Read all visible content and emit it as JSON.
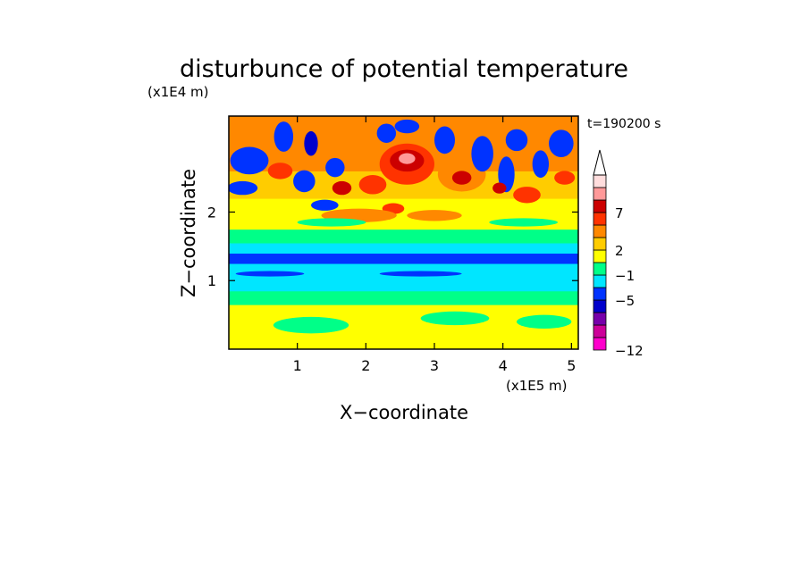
{
  "chart_data": {
    "type": "heatmap",
    "title": "disturbunce of potential temperature",
    "time_label": "t=190200 s",
    "xlabel": "X−coordinate",
    "ylabel": "Z−coordinate",
    "x_unit": "(x1E5 m)",
    "y_unit": "(x1E4 m)",
    "xlim": [
      0,
      5.1
    ],
    "ylim": [
      0,
      3.4
    ],
    "x_ticks": [
      {
        "value": 1,
        "label": "1"
      },
      {
        "value": 2,
        "label": "2"
      },
      {
        "value": 3,
        "label": "3"
      },
      {
        "value": 4,
        "label": "4"
      },
      {
        "value": 5,
        "label": "5"
      }
    ],
    "y_ticks": [
      {
        "value": 1,
        "label": "1"
      },
      {
        "value": 2,
        "label": "2"
      }
    ],
    "grid": false,
    "colorbar": {
      "position": "right",
      "levels": [
        {
          "color": "#ff00cc"
        },
        {
          "color": "#cc0099"
        },
        {
          "color": "#7700aa"
        },
        {
          "color": "#0000cc"
        },
        {
          "color": "#0033ff"
        },
        {
          "color": "#00e6ff"
        },
        {
          "color": "#00ff88"
        },
        {
          "color": "#ffff00"
        },
        {
          "color": "#ffcc00"
        },
        {
          "color": "#ff8800"
        },
        {
          "color": "#ff3300"
        },
        {
          "color": "#cc0000"
        },
        {
          "color": "#ff9999"
        },
        {
          "color": "#ffdddd"
        }
      ],
      "tick_labels": [
        {
          "index": 0,
          "label": "−12"
        },
        {
          "index": 4,
          "label": "−5"
        },
        {
          "index": 6,
          "label": "−1"
        },
        {
          "index": 8,
          "label": "2"
        },
        {
          "index": 11,
          "label": "7"
        }
      ]
    },
    "bands": [
      {
        "z": [
          0.0,
          0.2
        ],
        "level": 7
      },
      {
        "z": [
          0.2,
          0.65
        ],
        "level": 7
      },
      {
        "z": [
          0.65,
          0.85
        ],
        "level": 6
      },
      {
        "z": [
          0.85,
          1.05
        ],
        "level": 5
      },
      {
        "z": [
          1.05,
          1.25
        ],
        "level": 5
      },
      {
        "z": [
          1.25,
          1.4
        ],
        "level": 4
      },
      {
        "z": [
          1.4,
          1.55
        ],
        "level": 5
      },
      {
        "z": [
          1.55,
          1.75
        ],
        "level": 6
      },
      {
        "z": [
          1.75,
          2.2
        ],
        "level": 7
      },
      {
        "z": [
          2.2,
          2.6
        ],
        "level": 8
      },
      {
        "z": [
          2.6,
          3.4
        ],
        "level": 9
      }
    ],
    "features": [
      {
        "x": 1.2,
        "z": 0.35,
        "rx": 0.55,
        "rz": 0.12,
        "level": 6
      },
      {
        "x": 3.3,
        "z": 0.45,
        "rx": 0.5,
        "rz": 0.1,
        "level": 6
      },
      {
        "x": 4.6,
        "z": 0.4,
        "rx": 0.4,
        "rz": 0.1,
        "level": 6
      },
      {
        "x": 0.3,
        "z": 2.75,
        "rx": 0.28,
        "rz": 0.2,
        "level": 4
      },
      {
        "x": 0.2,
        "z": 2.35,
        "rx": 0.22,
        "rz": 0.1,
        "level": 4
      },
      {
        "x": 0.8,
        "z": 3.1,
        "rx": 0.14,
        "rz": 0.22,
        "level": 4
      },
      {
        "x": 1.2,
        "z": 3.0,
        "rx": 0.1,
        "rz": 0.18,
        "level": 3
      },
      {
        "x": 1.1,
        "z": 2.45,
        "rx": 0.16,
        "rz": 0.16,
        "level": 4
      },
      {
        "x": 1.55,
        "z": 2.65,
        "rx": 0.14,
        "rz": 0.14,
        "level": 4
      },
      {
        "x": 0.75,
        "z": 2.6,
        "rx": 0.18,
        "rz": 0.12,
        "level": 10
      },
      {
        "x": 1.65,
        "z": 2.35,
        "rx": 0.14,
        "rz": 0.1,
        "level": 11
      },
      {
        "x": 2.1,
        "z": 2.4,
        "rx": 0.2,
        "rz": 0.14,
        "level": 10
      },
      {
        "x": 1.4,
        "z": 2.1,
        "rx": 0.2,
        "rz": 0.08,
        "level": 4
      },
      {
        "x": 2.4,
        "z": 2.05,
        "rx": 0.16,
        "rz": 0.08,
        "level": 10
      },
      {
        "x": 2.6,
        "z": 2.7,
        "rx": 0.4,
        "rz": 0.3,
        "level": 10
      },
      {
        "x": 2.6,
        "z": 2.75,
        "rx": 0.25,
        "rz": 0.16,
        "level": 11
      },
      {
        "x": 2.6,
        "z": 2.78,
        "rx": 0.12,
        "rz": 0.08,
        "level": 12
      },
      {
        "x": 2.3,
        "z": 3.15,
        "rx": 0.14,
        "rz": 0.14,
        "level": 4
      },
      {
        "x": 2.6,
        "z": 3.25,
        "rx": 0.18,
        "rz": 0.1,
        "level": 4
      },
      {
        "x": 3.15,
        "z": 3.05,
        "rx": 0.15,
        "rz": 0.2,
        "level": 4
      },
      {
        "x": 3.4,
        "z": 2.55,
        "rx": 0.35,
        "rz": 0.25,
        "level": 9
      },
      {
        "x": 3.4,
        "z": 2.5,
        "rx": 0.14,
        "rz": 0.1,
        "level": 11
      },
      {
        "x": 3.7,
        "z": 2.85,
        "rx": 0.16,
        "rz": 0.26,
        "level": 4
      },
      {
        "x": 4.05,
        "z": 2.55,
        "rx": 0.12,
        "rz": 0.26,
        "level": 4
      },
      {
        "x": 4.2,
        "z": 3.05,
        "rx": 0.16,
        "rz": 0.16,
        "level": 4
      },
      {
        "x": 4.55,
        "z": 2.7,
        "rx": 0.12,
        "rz": 0.2,
        "level": 4
      },
      {
        "x": 4.85,
        "z": 3.0,
        "rx": 0.18,
        "rz": 0.2,
        "level": 4
      },
      {
        "x": 4.35,
        "z": 2.25,
        "rx": 0.2,
        "rz": 0.12,
        "level": 10
      },
      {
        "x": 4.9,
        "z": 2.5,
        "rx": 0.15,
        "rz": 0.1,
        "level": 10
      },
      {
        "x": 3.95,
        "z": 2.35,
        "rx": 0.1,
        "rz": 0.08,
        "level": 11
      },
      {
        "x": 1.9,
        "z": 1.95,
        "rx": 0.55,
        "rz": 0.1,
        "level": 9
      },
      {
        "x": 3.0,
        "z": 1.95,
        "rx": 0.4,
        "rz": 0.08,
        "level": 9
      },
      {
        "x": 0.6,
        "z": 1.1,
        "rx": 0.5,
        "rz": 0.04,
        "level": 4
      },
      {
        "x": 2.8,
        "z": 1.1,
        "rx": 0.6,
        "rz": 0.04,
        "level": 4
      },
      {
        "x": 1.5,
        "z": 1.85,
        "rx": 0.5,
        "rz": 0.06,
        "level": 6
      },
      {
        "x": 4.3,
        "z": 1.85,
        "rx": 0.5,
        "rz": 0.06,
        "level": 6
      }
    ]
  }
}
